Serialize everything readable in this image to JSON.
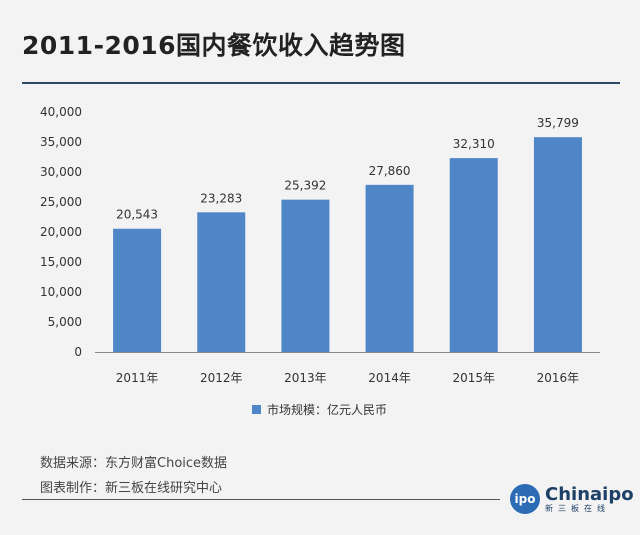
{
  "title": "2011-2016国内餐饮收入趋势图",
  "colors": {
    "bar": "#4e86c8",
    "rule": "#2e4a63"
  },
  "chart_data": {
    "type": "bar",
    "categories": [
      "2011年",
      "2012年",
      "2013年",
      "2014年",
      "2015年",
      "2016年"
    ],
    "series": [
      {
        "name": "市场规模：亿元人民币",
        "values": [
          20543,
          23283,
          25392,
          27860,
          32310,
          35799
        ]
      }
    ],
    "data_labels": [
      "20,543",
      "23,283",
      "25,392",
      "27,860",
      "32,310",
      "35,799"
    ],
    "ylim": [
      0,
      40000
    ],
    "yticks": [
      0,
      5000,
      10000,
      15000,
      20000,
      25000,
      30000,
      35000,
      40000
    ],
    "ytick_labels": [
      "0",
      "5,000",
      "10,000",
      "15,000",
      "20,000",
      "25,000",
      "30,000",
      "35,000",
      "40,000"
    ],
    "xlabel": "",
    "ylabel": "",
    "grid": false,
    "legend_position": "bottom"
  },
  "notes": {
    "source": "数据来源：东方财富Choice数据",
    "maker": "图表制作：新三板在线研究中心"
  },
  "logo": {
    "badge": "ipo",
    "name": "Chinaipo",
    "sub": "新三板在线"
  }
}
